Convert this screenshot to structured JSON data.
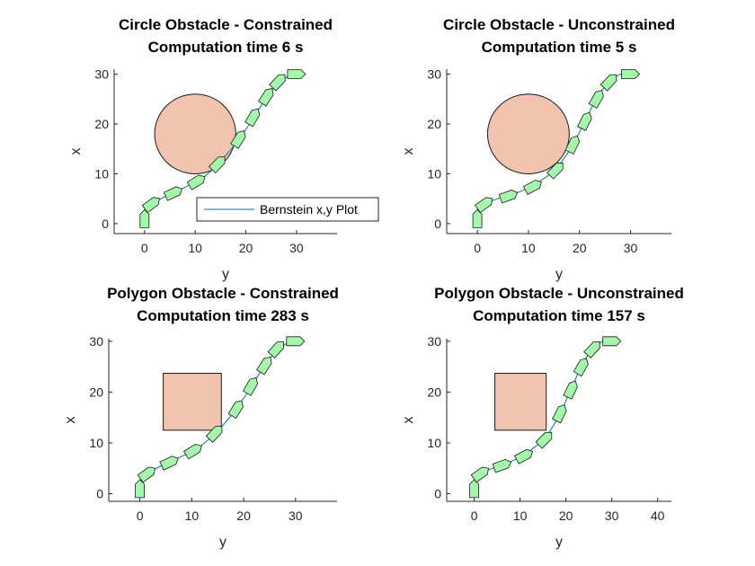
{
  "chart_data": [
    {
      "type": "line",
      "title": [
        "Circle Obstacle - Constrained",
        "Computation time 6 s"
      ],
      "xlabel": "y",
      "ylabel": "x",
      "xlim": [
        -6,
        38
      ],
      "ylim": [
        -2,
        31
      ],
      "xticks": [
        0,
        10,
        20,
        30
      ],
      "yticks": [
        0,
        10,
        20,
        30
      ],
      "obstacle": {
        "shape": "circle",
        "center": [
          10,
          18
        ],
        "radius": 8
      },
      "legend": {
        "label": "Bernstein x,y Plot",
        "location": "bottom-right"
      },
      "series": [
        {
          "name": "Bernstein x,y Plot",
          "x": [
            0,
            0,
            0.6,
            2,
            4,
            6.5,
            9,
            11.5,
            13.5,
            15.2,
            17,
            18.8,
            20.6,
            22.4,
            24.2,
            26.5,
            29,
            31
          ],
          "y": [
            0,
            2,
            3.4,
            4.4,
            5.4,
            6.6,
            7.8,
            9.2,
            10.9,
            12.7,
            14.8,
            17.1,
            19.8,
            22.7,
            25.6,
            28.4,
            30,
            30
          ]
        }
      ],
      "markers": [
        {
          "x": 0,
          "y": 1,
          "angle": 90
        },
        {
          "x": 1.5,
          "y": 4,
          "angle": 36
        },
        {
          "x": 5.8,
          "y": 6.2,
          "angle": 25
        },
        {
          "x": 10.4,
          "y": 8.5,
          "angle": 31
        },
        {
          "x": 14.6,
          "y": 12.1,
          "angle": 46
        },
        {
          "x": 18.7,
          "y": 17.1,
          "angle": 58
        },
        {
          "x": 21.5,
          "y": 21.5,
          "angle": 60
        },
        {
          "x": 24.2,
          "y": 25.6,
          "angle": 57
        },
        {
          "x": 26.5,
          "y": 28.6,
          "angle": 47
        },
        {
          "x": 30,
          "y": 30,
          "angle": 0
        }
      ]
    },
    {
      "type": "line",
      "title": [
        "Circle Obstacle - Unconstrained",
        "Computation time 5 s"
      ],
      "xlabel": "y",
      "ylabel": "x",
      "xlim": [
        -6,
        38
      ],
      "ylim": [
        -2,
        31
      ],
      "xticks": [
        0,
        10,
        20,
        30
      ],
      "yticks": [
        0,
        10,
        20,
        30
      ],
      "obstacle": {
        "shape": "circle",
        "center": [
          10,
          18
        ],
        "radius": 8
      },
      "series": [
        {
          "name": "Bernstein x,y Plot",
          "x": [
            0,
            0,
            0.5,
            2,
            4,
            6.5,
            9,
            11.5,
            13.8,
            16,
            17.8,
            19.5,
            21,
            22.5,
            24,
            25.8,
            28,
            31
          ],
          "y": [
            0,
            2,
            3.3,
            4.3,
            5,
            5.8,
            6.7,
            8,
            9.6,
            11.7,
            14.3,
            17.3,
            20.5,
            23.5,
            26.2,
            28.7,
            30,
            30
          ]
        }
      ],
      "markers": [
        {
          "x": 0,
          "y": 1,
          "angle": 90
        },
        {
          "x": 1.5,
          "y": 4,
          "angle": 35
        },
        {
          "x": 6.2,
          "y": 5.6,
          "angle": 20
        },
        {
          "x": 11,
          "y": 7.5,
          "angle": 28
        },
        {
          "x": 15.5,
          "y": 10.9,
          "angle": 45
        },
        {
          "x": 18.8,
          "y": 16,
          "angle": 64
        },
        {
          "x": 21.2,
          "y": 20.7,
          "angle": 64
        },
        {
          "x": 23.5,
          "y": 25.2,
          "angle": 60
        },
        {
          "x": 26,
          "y": 28.6,
          "angle": 47
        },
        {
          "x": 30,
          "y": 30,
          "angle": 0
        }
      ]
    },
    {
      "type": "line",
      "title": [
        "Polygon Obstacle - Constrained",
        "Computation time 283 s"
      ],
      "xlabel": "y",
      "ylabel": "x",
      "xlim": [
        -6,
        38
      ],
      "ylim": [
        -1.5,
        30.5
      ],
      "xticks": [
        0,
        10,
        20,
        30
      ],
      "yticks": [
        0,
        10,
        20,
        30
      ],
      "obstacle": {
        "shape": "polygon",
        "vertices": [
          [
            4.5,
            12.5
          ],
          [
            15.7,
            12.5
          ],
          [
            15.7,
            23.7
          ],
          [
            4.5,
            23.7
          ]
        ]
      },
      "series": [
        {
          "name": "Bernstein x,y Plot",
          "x": [
            0,
            0,
            0.6,
            2,
            4,
            6.5,
            9,
            11.5,
            13.5,
            15.2,
            17,
            18.8,
            20.6,
            22.4,
            24.2,
            26.5,
            29,
            31
          ],
          "y": [
            0,
            2,
            3.4,
            4.4,
            5.4,
            6.6,
            7.8,
            9.2,
            10.9,
            12.6,
            14.6,
            17,
            19.7,
            22.6,
            25.5,
            28.4,
            30,
            30
          ]
        }
      ],
      "markers": [
        {
          "x": 0,
          "y": 1,
          "angle": 90
        },
        {
          "x": 1.5,
          "y": 4,
          "angle": 36
        },
        {
          "x": 5.8,
          "y": 6.2,
          "angle": 25
        },
        {
          "x": 10.4,
          "y": 8.5,
          "angle": 31
        },
        {
          "x": 14.6,
          "y": 12,
          "angle": 46
        },
        {
          "x": 18.7,
          "y": 16.8,
          "angle": 58
        },
        {
          "x": 21.5,
          "y": 21.3,
          "angle": 60
        },
        {
          "x": 24.2,
          "y": 25.4,
          "angle": 57
        },
        {
          "x": 26.5,
          "y": 28.6,
          "angle": 47
        },
        {
          "x": 30,
          "y": 30,
          "angle": 0
        }
      ]
    },
    {
      "type": "line",
      "title": [
        "Polygon Obstacle - Unconstrained",
        "Computation time 157 s"
      ],
      "xlabel": "y",
      "ylabel": "x",
      "xlim": [
        -6,
        43
      ],
      "ylim": [
        -1.5,
        30.5
      ],
      "xticks": [
        0,
        10,
        20,
        30,
        40
      ],
      "yticks": [
        0,
        10,
        20,
        30
      ],
      "obstacle": {
        "shape": "polygon",
        "vertices": [
          [
            4.5,
            12.5
          ],
          [
            15.7,
            12.5
          ],
          [
            15.7,
            23.7
          ],
          [
            4.5,
            23.7
          ]
        ]
      },
      "series": [
        {
          "name": "Bernstein x,y Plot",
          "x": [
            0,
            0,
            0.5,
            2,
            4,
            6.5,
            9,
            11.5,
            13.8,
            16,
            17.8,
            19.5,
            21,
            22.5,
            24,
            25.8,
            28,
            31
          ],
          "y": [
            0,
            2,
            3.3,
            4.3,
            5,
            5.8,
            6.7,
            8,
            9.6,
            11.6,
            14.2,
            17.2,
            20.4,
            23.4,
            26.2,
            28.7,
            30,
            30
          ]
        }
      ],
      "markers": [
        {
          "x": 0,
          "y": 1,
          "angle": 90
        },
        {
          "x": 1.5,
          "y": 4,
          "angle": 35
        },
        {
          "x": 6.2,
          "y": 5.6,
          "angle": 20
        },
        {
          "x": 11,
          "y": 7.5,
          "angle": 28
        },
        {
          "x": 15.5,
          "y": 10.8,
          "angle": 45
        },
        {
          "x": 18.8,
          "y": 15.9,
          "angle": 64
        },
        {
          "x": 21.2,
          "y": 20.6,
          "angle": 64
        },
        {
          "x": 23.5,
          "y": 25.1,
          "angle": 60
        },
        {
          "x": 26,
          "y": 28.6,
          "angle": 47
        },
        {
          "x": 30,
          "y": 30,
          "angle": 0
        }
      ]
    }
  ],
  "colors": {
    "obstacle_fill": "#f2c4af",
    "obstacle_edge": "#1a1a1a",
    "line": "#0072bd",
    "vehicle_fill": "#a3f7a8",
    "vehicle_edge": "#1a1a1a",
    "axes": "#262626"
  },
  "icons": {
    "vehicle": "vehicle-marker-icon",
    "obstacle": "obstacle-shape"
  }
}
